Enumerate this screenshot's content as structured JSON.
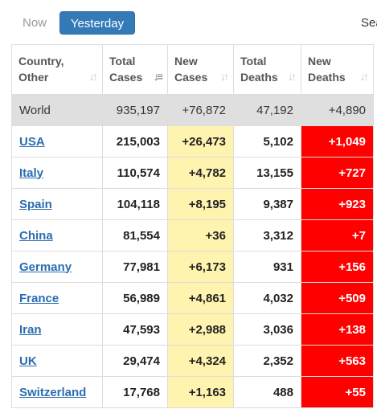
{
  "tabs": {
    "now": "Now",
    "yesterday": "Yesterday",
    "search": "Sea"
  },
  "columns": [
    {
      "line1": "Country,",
      "line2": "Other"
    },
    {
      "line1": "Total",
      "line2": "Cases"
    },
    {
      "line1": "New",
      "line2": "Cases"
    },
    {
      "line1": "Total",
      "line2": "Deaths"
    },
    {
      "line1": "New",
      "line2": "Deaths"
    }
  ],
  "sort_icon": "sort-arrows-icon",
  "world": {
    "country": "World",
    "total_cases": "935,197",
    "new_cases": "+76,872",
    "total_deaths": "47,192",
    "new_deaths": "+4,890"
  },
  "rows": [
    {
      "country": "USA",
      "total_cases": "215,003",
      "new_cases": "+26,473",
      "total_deaths": "5,102",
      "new_deaths": "+1,049"
    },
    {
      "country": "Italy",
      "total_cases": "110,574",
      "new_cases": "+4,782",
      "total_deaths": "13,155",
      "new_deaths": "+727"
    },
    {
      "country": "Spain",
      "total_cases": "104,118",
      "new_cases": "+8,195",
      "total_deaths": "9,387",
      "new_deaths": "+923"
    },
    {
      "country": "China",
      "total_cases": "81,554",
      "new_cases": "+36",
      "total_deaths": "3,312",
      "new_deaths": "+7"
    },
    {
      "country": "Germany",
      "total_cases": "77,981",
      "new_cases": "+6,173",
      "total_deaths": "931",
      "new_deaths": "+156"
    },
    {
      "country": "France",
      "total_cases": "56,989",
      "new_cases": "+4,861",
      "total_deaths": "4,032",
      "new_deaths": "+509"
    },
    {
      "country": "Iran",
      "total_cases": "47,593",
      "new_cases": "+2,988",
      "total_deaths": "3,036",
      "new_deaths": "+138"
    },
    {
      "country": "UK",
      "total_cases": "29,474",
      "new_cases": "+4,324",
      "total_deaths": "2,352",
      "new_deaths": "+563"
    },
    {
      "country": "Switzerland",
      "total_cases": "17,768",
      "new_cases": "+1,163",
      "total_deaths": "488",
      "new_deaths": "+55"
    }
  ],
  "colors": {
    "accent": "#337ab7",
    "new_cases_bg": "#fff3b0",
    "new_deaths_bg": "#ff0000",
    "world_bg": "#dfdfdf",
    "link": "#2a6db0"
  }
}
